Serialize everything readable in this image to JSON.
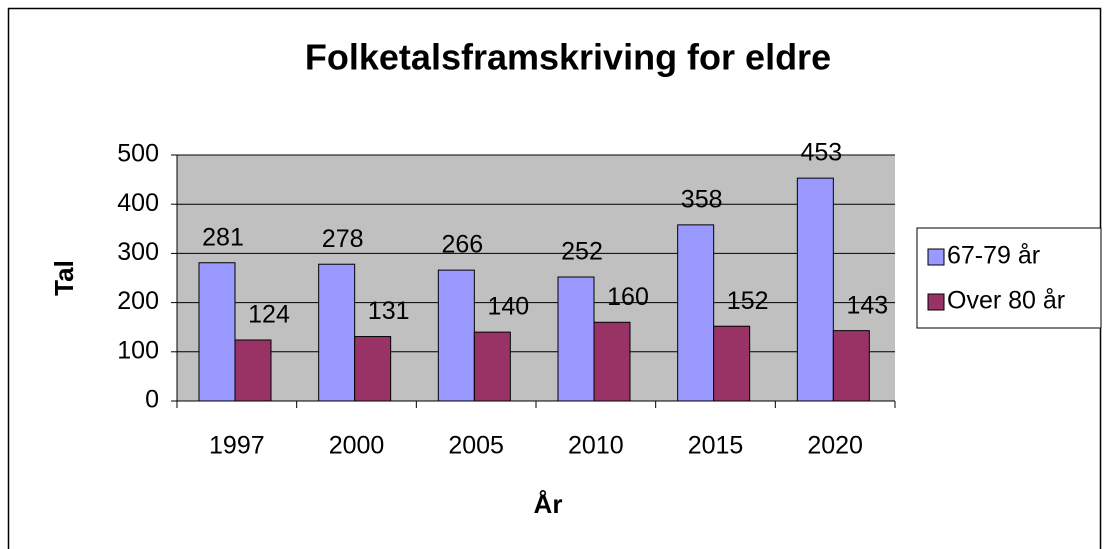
{
  "chart_data": {
    "type": "bar",
    "title": "Folketalsframskriving for eldre",
    "x_label": "År",
    "y_label": "Tal",
    "categories": [
      "1997",
      "2000",
      "2005",
      "2010",
      "2015",
      "2020"
    ],
    "series": [
      {
        "name": "67-79 år",
        "color": "#9999ff",
        "values": [
          281,
          278,
          266,
          252,
          358,
          453
        ]
      },
      {
        "name": "Over 80 år",
        "color": "#993366",
        "values": [
          124,
          131,
          140,
          160,
          152,
          143
        ]
      }
    ],
    "ylim": [
      0,
      500
    ],
    "yticks": [
      0,
      100,
      200,
      300,
      400,
      500
    ],
    "grid": true,
    "legend": "right",
    "plot_background": "#c0c0c0"
  }
}
